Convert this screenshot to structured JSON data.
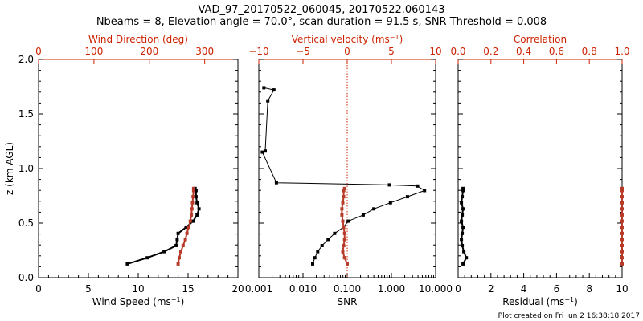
{
  "title": {
    "line1": "VAD_97_20170522_060045, 20170522.060143",
    "line2": "Nbeams = 8, Elevation angle = 70.0°, scan duration = 91.5 s, SNR Threshold = 0.008"
  },
  "footer": {
    "created": "Plot created on Fri Jun  2 16:38:18 2017"
  },
  "colors": {
    "black": "#000000",
    "red": "#cc2200",
    "dirline": "#b83a28"
  },
  "chart_data": [
    {
      "type": "line",
      "panel": "wind",
      "ylabel": "z (km AGL)",
      "ylim": [
        0,
        2
      ],
      "yticks": [
        "0.0",
        "0.5",
        "1.0",
        "1.5",
        "2.0"
      ],
      "xlabel": "Wind Speed (ms",
      "xlabel_sup": "−1",
      "xlabel_end": ")",
      "xlim": [
        0,
        20
      ],
      "xticks": [
        "0",
        "5",
        "10",
        "15",
        "20"
      ],
      "top_label": "Wind Direction (deg)",
      "top_lim": [
        0,
        360
      ],
      "top_ticks": [
        "0",
        "100",
        "200",
        "300"
      ],
      "series": [
        {
          "axis": "bottom",
          "color": "#000000",
          "x": [
            8.9,
            10.9,
            12.6,
            13.8,
            13.9,
            14.0,
            14.8,
            15.5,
            15.9,
            16.1,
            15.9,
            15.8,
            15.8,
            15.7
          ],
          "y": [
            0.126,
            0.182,
            0.238,
            0.294,
            0.35,
            0.406,
            0.462,
            0.518,
            0.574,
            0.63,
            0.686,
            0.742,
            0.798,
            0.818
          ]
        },
        {
          "axis": "top",
          "color": "#b83a28",
          "x": [
            252,
            254,
            257,
            261,
            265,
            268,
            271,
            274,
            276,
            277,
            278,
            279,
            280,
            280
          ],
          "y": [
            0.126,
            0.182,
            0.238,
            0.294,
            0.35,
            0.406,
            0.462,
            0.518,
            0.574,
            0.63,
            0.686,
            0.742,
            0.798,
            0.818
          ]
        }
      ]
    },
    {
      "type": "line",
      "panel": "snr",
      "ylim": [
        0,
        2
      ],
      "xlabel": "SNR",
      "xscale": "log",
      "xlim": [
        0.001,
        10
      ],
      "xticks": [
        {
          "v": 0.001,
          "t": "0.001"
        },
        {
          "v": 0.01,
          "t": "0.010"
        },
        {
          "v": 0.1,
          "t": "0.100"
        },
        {
          "v": 1,
          "t": "1.000"
        },
        {
          "v": 10,
          "t": "10.000"
        }
      ],
      "top_label": "Vertical velocity (ms",
      "top_label_sup": "−1",
      "top_label_end": ")",
      "top_lim": [
        -10,
        10
      ],
      "top_ticks": [
        "−10",
        "−5",
        "0",
        "5",
        "10"
      ],
      "top_tick_values": [
        -10,
        -5,
        0,
        5,
        10
      ],
      "zero_line": 0,
      "series": [
        {
          "axis": "bottom",
          "color": "#000000",
          "x": [
            0.0165,
            0.0185,
            0.0215,
            0.027,
            0.037,
            0.052,
            0.082,
            0.105,
            0.23,
            0.4,
            0.95,
            2.3,
            5.6,
            3.9,
            0.9,
            0.0025,
            0.0012,
            0.0014,
            0.0016,
            0.0022,
            0.0013
          ],
          "y": [
            0.126,
            0.182,
            0.238,
            0.294,
            0.35,
            0.406,
            0.462,
            0.518,
            0.574,
            0.63,
            0.686,
            0.742,
            0.798,
            0.84,
            0.85,
            0.87,
            1.15,
            1.16,
            1.62,
            1.72,
            1.74
          ]
        },
        {
          "axis": "top",
          "color": "#b83a28",
          "x": [
            0.0,
            -0.3,
            -0.5,
            -0.4,
            -0.3,
            -0.3,
            -0.4,
            -0.5,
            -0.6,
            -0.6,
            -0.5,
            -0.4,
            -0.4,
            -0.3
          ],
          "y": [
            0.126,
            0.182,
            0.238,
            0.294,
            0.35,
            0.406,
            0.462,
            0.518,
            0.574,
            0.63,
            0.686,
            0.742,
            0.798,
            0.818
          ]
        }
      ]
    },
    {
      "type": "line",
      "panel": "resid",
      "ylim": [
        0,
        2
      ],
      "xlabel": "Residual (ms",
      "xlabel_sup": "−1",
      "xlabel_end": ")",
      "xlim": [
        0,
        10
      ],
      "xticks": [
        "0",
        "2",
        "4",
        "6",
        "8",
        "10"
      ],
      "top_label": "Correlation",
      "top_lim": [
        0,
        1
      ],
      "top_ticks": [
        "0.0",
        "0.2",
        "0.4",
        "0.6",
        "0.8",
        "1.0"
      ],
      "series": [
        {
          "axis": "bottom",
          "color": "#000000",
          "x": [
            0.3,
            0.5,
            0.35,
            0.25,
            0.2,
            0.25,
            0.3,
            0.2,
            0.25,
            0.3,
            0.2,
            0.25,
            0.3,
            0.3
          ],
          "y": [
            0.126,
            0.182,
            0.238,
            0.294,
            0.35,
            0.406,
            0.462,
            0.518,
            0.574,
            0.63,
            0.686,
            0.742,
            0.798,
            0.818
          ]
        },
        {
          "axis": "top",
          "color": "#b83a28",
          "x": [
            1.0,
            1.0,
            1.0,
            1.0,
            1.0,
            1.0,
            1.0,
            1.0,
            1.0,
            1.0,
            1.0,
            1.0,
            1.0,
            1.0
          ],
          "y": [
            0.126,
            0.182,
            0.238,
            0.294,
            0.35,
            0.406,
            0.462,
            0.518,
            0.574,
            0.63,
            0.686,
            0.742,
            0.798,
            0.818
          ]
        }
      ]
    }
  ]
}
